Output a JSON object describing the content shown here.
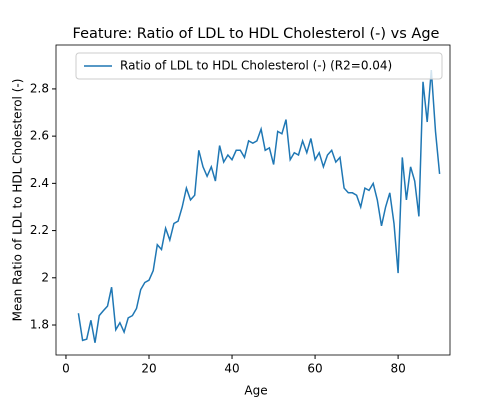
{
  "chart_data": {
    "type": "line",
    "title": "Feature: Ratio of LDL to HDL Cholesterol (-) vs Age",
    "xlabel": "Age",
    "ylabel": "Mean Ratio of LDL to HDL Cholesterol (-)",
    "x": [
      3,
      4,
      5,
      6,
      7,
      8,
      9,
      10,
      11,
      12,
      13,
      14,
      15,
      16,
      17,
      18,
      19,
      20,
      21,
      22,
      23,
      24,
      25,
      26,
      27,
      28,
      29,
      30,
      31,
      32,
      33,
      34,
      35,
      36,
      37,
      38,
      39,
      40,
      41,
      42,
      43,
      44,
      45,
      46,
      47,
      48,
      49,
      50,
      51,
      52,
      53,
      54,
      55,
      56,
      57,
      58,
      59,
      60,
      61,
      62,
      63,
      64,
      65,
      66,
      67,
      68,
      69,
      70,
      71,
      72,
      73,
      74,
      75,
      76,
      77,
      78,
      79,
      80,
      81,
      82,
      83,
      84,
      85,
      86,
      87,
      88,
      89,
      90
    ],
    "series": [
      {
        "name": "Ratio of LDL to HDL Cholesterol (-) (R2=0.04)",
        "color": "#1f77b4",
        "values": [
          1.85,
          1.735,
          1.74,
          1.82,
          1.725,
          1.84,
          1.86,
          1.88,
          1.96,
          1.78,
          1.81,
          1.77,
          1.83,
          1.84,
          1.87,
          1.95,
          1.98,
          1.99,
          2.03,
          2.14,
          2.12,
          2.21,
          2.16,
          2.23,
          2.24,
          2.3,
          2.38,
          2.33,
          2.35,
          2.54,
          2.47,
          2.43,
          2.47,
          2.41,
          2.56,
          2.49,
          2.52,
          2.5,
          2.54,
          2.54,
          2.51,
          2.58,
          2.57,
          2.58,
          2.63,
          2.54,
          2.55,
          2.48,
          2.62,
          2.61,
          2.67,
          2.5,
          2.53,
          2.52,
          2.58,
          2.53,
          2.59,
          2.5,
          2.53,
          2.47,
          2.52,
          2.54,
          2.49,
          2.51,
          2.38,
          2.36,
          2.36,
          2.35,
          2.3,
          2.38,
          2.37,
          2.4,
          2.33,
          2.22,
          2.3,
          2.36,
          2.23,
          2.02,
          2.51,
          2.33,
          2.47,
          2.41,
          2.26,
          2.83,
          2.66,
          2.88,
          2.62,
          2.44
        ]
      }
    ],
    "xlim": [
      -2.4,
      92.5
    ],
    "ylim": [
      1.673,
      2.986
    ],
    "xticks": [
      0,
      20,
      40,
      60,
      80
    ],
    "yticks": [
      1.8,
      2.0,
      2.2,
      2.4,
      2.6,
      2.8
    ],
    "legend": "upper right"
  }
}
